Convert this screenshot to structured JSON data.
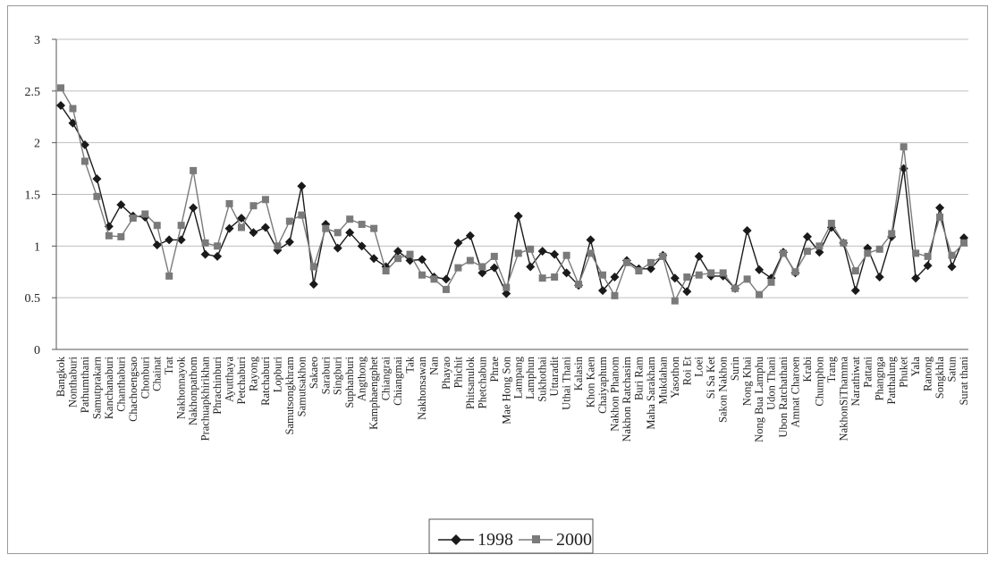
{
  "colors": {
    "series_1998": "#1a1a1a",
    "series_2000": "#7a7a7a",
    "grid": "#bfbfbf",
    "axis": "#555555"
  },
  "chart_data": {
    "type": "line",
    "title": "",
    "xlabel": "",
    "ylabel": "",
    "ylim": [
      0,
      3
    ],
    "yticks": [
      0,
      0.5,
      1,
      1.5,
      2,
      2.5,
      3
    ],
    "ytick_labels": [
      "0",
      "0.5",
      "1",
      "1.5",
      "2",
      "2.5",
      "3"
    ],
    "grid": true,
    "legend_position": "bottom-center",
    "categories": [
      "Bangkok",
      "Nonthaburi",
      "Pathumthani",
      "Samutprakarn",
      "Kanchanaburi",
      "Chanthaburi",
      "Chachoengsao",
      "Chonburi",
      "Chainat",
      "Trat",
      "Nakhonnayok",
      "Nakhonpathom",
      "Prachuapkhirikhan",
      "Phrachinburi",
      "Ayutthaya",
      "Petchaburi",
      "Rayong",
      "Ratchaburi",
      "Lopburi",
      "Samutsongkhram",
      "Samutsakhon",
      "Sakaeo",
      "Saraburi",
      "Singburi",
      "Suphanburi",
      "Angthong",
      "Kamphaengphet",
      "Chiangrai",
      "Chiangmai",
      "Tak",
      "Nakhonsawan",
      "Nan",
      "Phayao",
      "Phichit",
      "Phitsanulok",
      "Phetchabun",
      "Phrae",
      "Mae Hong Son",
      "Lampang",
      "Lamphun",
      "Sukhothai",
      "Uttaradit",
      "Uthai Thani",
      "Kalasin",
      "Khon Kaen",
      "Chaiyaphum",
      "Nakhon Phanom",
      "Nakhon Ratchasim",
      "Buri Ram",
      "Maha Sarakham",
      "Mukdahan",
      "Yasothon",
      "Roi Et",
      "Loei",
      "Si Sa Ket",
      "Sakon Nakhon",
      "Surin",
      "Nong Khai",
      "Nong Bua Lamphu",
      "Udon Thani",
      "Ubon Ratchathani",
      "Amnat Charoen",
      "Krabi",
      "Chumphon",
      "Trang",
      "NakhonSiThamma",
      "Narathiwat",
      "Pattani",
      "Phangnga",
      "Patthalung",
      "Phuket",
      "Yala",
      "Ranong",
      "Songkhla",
      "Satun",
      "Surat thani"
    ],
    "tick_label_stride": 1,
    "series": [
      {
        "name": "1998",
        "marker": "diamond",
        "values": [
          2.36,
          2.19,
          1.98,
          1.65,
          1.19,
          1.4,
          1.29,
          1.28,
          1.01,
          1.06,
          1.06,
          1.37,
          0.92,
          0.9,
          1.17,
          1.27,
          1.13,
          1.18,
          0.96,
          1.04,
          1.58,
          0.63,
          1.21,
          0.98,
          1.13,
          1.0,
          0.88,
          0.8,
          0.95,
          0.86,
          0.87,
          0.7,
          0.68,
          1.03,
          1.1,
          0.74,
          0.79,
          0.54,
          1.29,
          0.8,
          0.95,
          0.92,
          0.74,
          0.62,
          1.06,
          0.57,
          0.7,
          0.86,
          0.78,
          0.78,
          0.91,
          0.69,
          0.56,
          0.9,
          0.71,
          0.71,
          0.59,
          1.15,
          0.77,
          0.69,
          0.94,
          0.74,
          1.09,
          0.94,
          1.18,
          1.03,
          0.57,
          0.98,
          0.7,
          1.09,
          1.75,
          0.69,
          0.81,
          1.37,
          0.8,
          1.08
        ]
      },
      {
        "name": "2000",
        "marker": "square",
        "values": [
          2.53,
          2.33,
          1.82,
          1.48,
          1.1,
          1.09,
          1.27,
          1.31,
          1.2,
          0.71,
          1.2,
          1.73,
          1.03,
          1.0,
          1.41,
          1.18,
          1.39,
          1.45,
          1.0,
          1.24,
          1.3,
          0.8,
          1.17,
          1.13,
          1.26,
          1.21,
          1.17,
          0.76,
          0.88,
          0.92,
          0.72,
          0.68,
          0.58,
          0.79,
          0.86,
          0.8,
          0.9,
          0.6,
          0.93,
          0.97,
          0.69,
          0.7,
          0.91,
          0.63,
          0.93,
          0.72,
          0.52,
          0.84,
          0.76,
          0.84,
          0.9,
          0.47,
          0.7,
          0.72,
          0.74,
          0.74,
          0.59,
          0.68,
          0.53,
          0.65,
          0.93,
          0.75,
          0.95,
          1.0,
          1.22,
          1.03,
          0.76,
          0.93,
          0.97,
          1.12,
          1.96,
          0.93,
          0.9,
          1.28,
          0.91,
          1.03
        ]
      }
    ]
  }
}
